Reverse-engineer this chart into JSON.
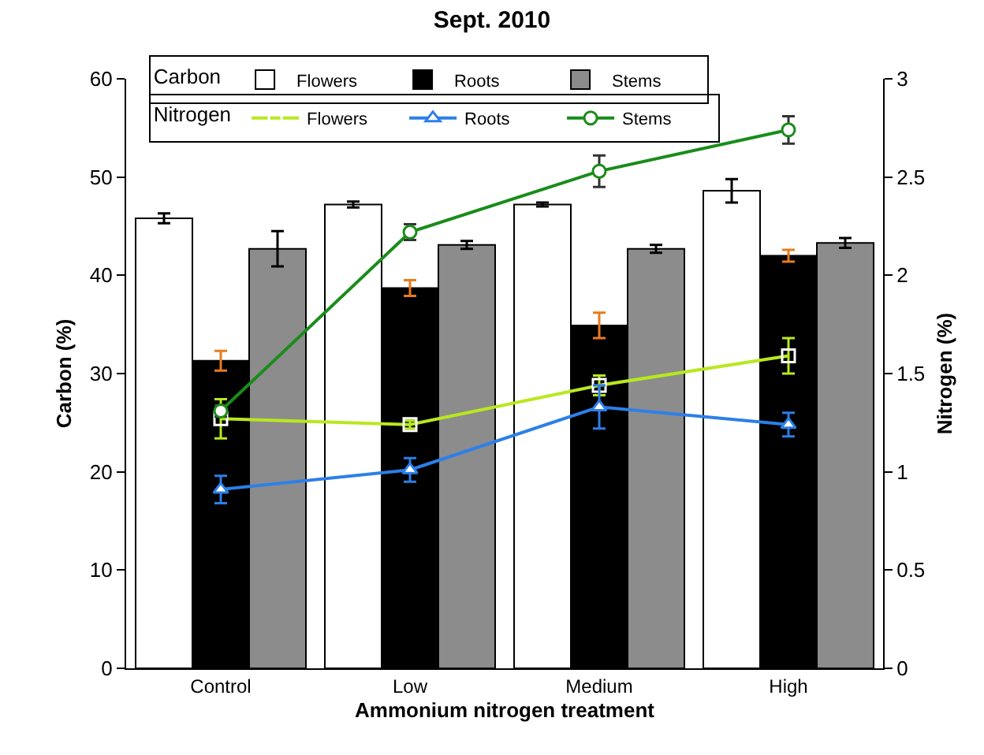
{
  "chart_data": {
    "type": "bar",
    "title": "Sept. 2010",
    "xlabel": "Ammonium nitrogen treatment",
    "ylabel": "Carbon (%)",
    "y2label": "Nitrogen (%)",
    "legend_title": [
      "Carbon",
      "Nitrogen"
    ],
    "legend": "top",
    "categories": [
      "Control",
      "Low",
      "Medium",
      "High"
    ],
    "ylim": [
      0,
      60
    ],
    "yticks": [
      0,
      10,
      20,
      30,
      40,
      50,
      60
    ],
    "y2lim": [
      0,
      3
    ],
    "y2ticks": [
      0,
      0.5,
      1,
      1.5,
      2,
      2.5,
      3
    ],
    "grid": false,
    "series": [
      {
        "name": "Flowers",
        "color": "#ffffff",
        "values": [
          45.8,
          47.2,
          47.2,
          48.6
        ],
        "errors": [
          0.5,
          0.3,
          0.2,
          1.2
        ]
      },
      {
        "name": "Roots",
        "color": "#000000",
        "values": [
          31.3,
          38.7,
          34.9,
          42.0
        ],
        "errors": [
          1.0,
          0.8,
          1.3,
          0.6
        ]
      },
      {
        "name": "Stems",
        "color": "#8c8c8c",
        "values": [
          42.7,
          43.1,
          42.7,
          43.3
        ],
        "errors": [
          1.8,
          0.4,
          0.4,
          0.5
        ]
      },
      {
        "name": "Flowers",
        "type": "line",
        "axis": "y2",
        "marker": "square",
        "color": "#b8e81e",
        "values": [
          1.27,
          1.24,
          1.44,
          1.59
        ],
        "errors": [
          0.1,
          0.02,
          0.05,
          0.09
        ]
      },
      {
        "name": "Roots",
        "type": "line",
        "axis": "y2",
        "marker": "triangle",
        "color": "#2d7fe8",
        "values": [
          0.91,
          1.01,
          1.33,
          1.24
        ],
        "errors": [
          0.07,
          0.06,
          0.11,
          0.06
        ]
      },
      {
        "name": "Stems",
        "type": "line",
        "axis": "y2",
        "marker": "circle",
        "color": "#1a8c1a",
        "values": [
          1.31,
          2.22,
          2.53,
          2.74
        ],
        "errors": [
          0.03,
          0.04,
          0.08,
          0.07
        ]
      }
    ]
  }
}
